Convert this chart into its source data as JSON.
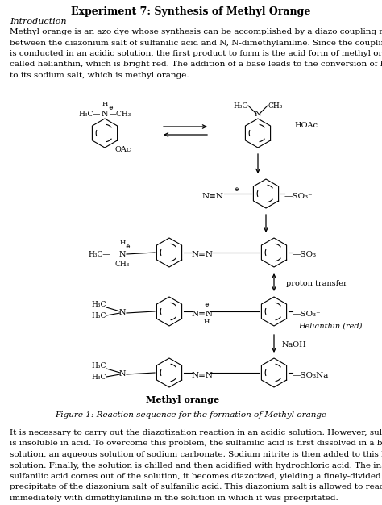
{
  "title": "Experiment 7: Synthesis of Methyl Orange",
  "section_header": "Introduction",
  "intro_text": "Methyl orange is an azo dye whose synthesis can be accomplished by a diazo coupling reaction\nbetween the diazonium salt of sulfanilic acid and N, N-dimethylaniline. Since the coupling reaction\nis conducted in an acidic solution, the first product to form is the acid form of methyl orange,\ncalled helianthin, which is bright red. The addition of a base leads to the conversion of helianthin\nto its sodium salt, which is methyl orange.",
  "figure_caption": "Figure 1: Reaction sequence for the formation of Methyl orange",
  "body_text": "It is necessary to carry out the diazotization reaction in an acidic solution. However, sulfanilic acid\nis insoluble in acid. To overcome this problem, the sulfanilic acid is first dissolved in a basic\nsolution, an aqueous solution of sodium carbonate. Sodium nitrite is then added to this basic\nsolution. Finally, the solution is chilled and then acidified with hydrochloric acid. The instant the\nsulfanilic acid comes out of the solution, it becomes diazotized, yielding a finely-divided white\nprecipitate of the diazonium salt of sulfanilic acid. This diazonium salt is allowed to react\nimmediately with dimethylaniline in the solution in which it was precipitated.",
  "bg_color": "#ffffff",
  "text_color": "#000000",
  "figsize": [
    4.74,
    6.26
  ],
  "dpi": 100
}
